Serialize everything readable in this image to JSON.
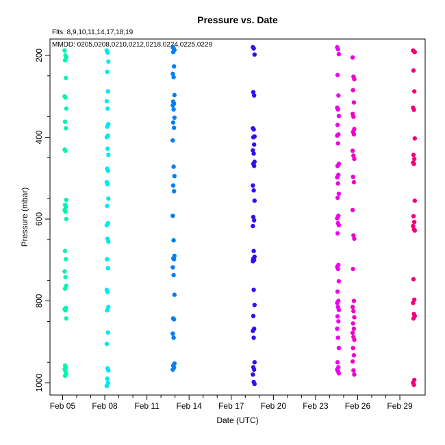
{
  "chart_data": {
    "type": "scatter",
    "title": "Pressure  vs. Date",
    "subtitle": "Flts: 8,9,10,11,14,17,18,19",
    "annotation": "MMDD: 0205,0208,0210,0212,0218,0224,0225,0229",
    "xlabel": "Date (UTC)",
    "ylabel": "Pressure (mbar)",
    "x_ticks": [
      {
        "label": "Feb 05",
        "day": 5
      },
      {
        "label": "Feb 08",
        "day": 8
      },
      {
        "label": "Feb 11",
        "day": 11
      },
      {
        "label": "Feb 14",
        "day": 14
      },
      {
        "label": "Feb 17",
        "day": 17
      },
      {
        "label": "Feb 20",
        "day": 20
      },
      {
        "label": "Feb 23",
        "day": 23
      },
      {
        "label": "Feb 26",
        "day": 26
      },
      {
        "label": "Feb 29",
        "day": 29
      }
    ],
    "y_ticks": [
      200,
      400,
      600,
      800,
      1000
    ],
    "xlim": [
      4.1,
      30.8
    ],
    "ylim": [
      1030,
      160
    ],
    "y_inverted": true,
    "grid": false,
    "series": [
      {
        "color": "#00f5b0",
        "points": [
          {
            "x": 5.2,
            "y": [
              188,
              200,
              205,
              212,
              255,
              300,
              303,
              330,
              362,
              378,
              430,
              433,
              553,
              565,
              570,
              578,
              582,
              600,
              678,
              698,
              728,
              742,
              763,
              770,
              817,
              820,
              823,
              843,
              958,
              962,
              967,
              972,
              978,
              983
            ]
          }
        ]
      },
      {
        "color": "#00e8f0",
        "points": [
          {
            "x": 8.2,
            "y": [
              188,
              193,
              215,
              240,
              288,
              312,
              330,
              368,
              374,
              396,
              400,
              428,
              443,
              477,
              482,
              510,
              515,
              550,
              568,
              610,
              615,
              648,
              655,
              698,
              720,
              773,
              778,
              815,
              823,
              877,
              905,
              965,
              970,
              990,
              1000,
              1008
            ]
          }
        ]
      },
      {
        "color": "#0080f0",
        "points": [
          {
            "x": 12.9,
            "y": [
              180,
              183,
              187,
              192,
              227,
              245,
              253,
              297,
              313,
              318,
              322,
              332,
              352,
              364,
              377,
              408,
              472,
              495,
              518,
              532,
              592,
              652,
              690,
              696,
              698,
              718,
              737,
              785,
              843,
              845,
              880,
              890,
              953,
              958,
              963,
              968
            ]
          }
        ]
      },
      {
        "color": "#3010f0",
        "points": [
          {
            "x": 18.6,
            "y": [
              180,
              183,
              198,
              290,
              298,
              378,
              381,
              398,
              400,
              418,
              432,
              440,
              460,
              465,
              470,
              518,
              530,
              555,
              595,
              603,
              617,
              678,
              692,
              697,
              700,
              703,
              773,
              810,
              837,
              868,
              873,
              890,
              950,
              962,
              968,
              980,
              998,
              1003
            ]
          }
        ]
      },
      {
        "color": "#f000f0",
        "points": [
          {
            "x": 24.6,
            "y": [
              180,
              185,
              197,
              248,
              298,
              328,
              332,
              348,
              370,
              393,
              396,
              415,
              465,
              470,
              492,
              498,
              513,
              538,
              548,
              592,
              598,
              610,
              615,
              635,
              712,
              717,
              722,
              752,
              777,
              800,
              805,
              815,
              822,
              838,
              850,
              868,
              890,
              915,
              950,
              962,
              968,
              972,
              977
            ]
          }
        ]
      },
      {
        "color": "#f000c8",
        "points": [
          {
            "x": 25.7,
            "y": [
              205,
              252,
              258,
              285,
              315,
              343,
              350,
              380,
              387,
              393,
              433,
              445,
              453,
              497,
              510,
              578,
              640,
              648,
              722,
              800,
              815,
              825,
              840,
              855,
              868,
              878,
              888,
              895,
              915,
              933,
              948,
              970,
              980
            ]
          }
        ]
      },
      {
        "color": "#f0007a",
        "points": [
          {
            "x": 30.0,
            "y": [
              188,
              190,
              192,
              237,
              288,
              328,
              333,
              403,
              443,
              453,
              462,
              465,
              555,
              593,
              607,
              617,
              625,
              628,
              747,
              797,
              805,
              832,
              837,
              843,
              993,
              1000,
              1005
            ]
          }
        ]
      }
    ]
  }
}
